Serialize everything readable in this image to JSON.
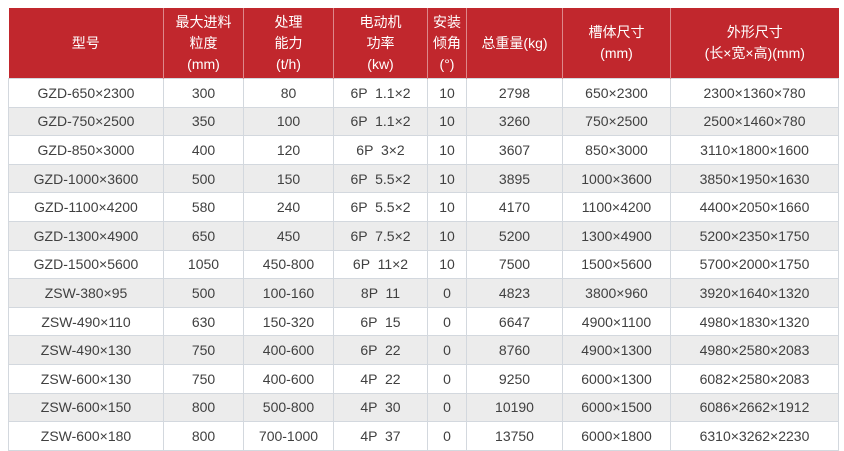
{
  "page": {
    "background": "#ffffff"
  },
  "style": {
    "header_bg": "#c1272d",
    "header_text": "#ffffff",
    "header_divider": "rgba(255,255,255,0.45)",
    "row_bg": "#ffffff",
    "row_alt_bg": "#ececec",
    "border_color": "#d3d8de",
    "text_color": "#404040"
  },
  "chart_data": {
    "type": "table",
    "title": "",
    "columns": [
      {
        "id": "model",
        "lines": [
          "型号"
        ]
      },
      {
        "id": "max-feed-size",
        "lines": [
          "最大进料",
          "粒度",
          "(mm)"
        ]
      },
      {
        "id": "capacity",
        "lines": [
          "处理",
          "能力",
          "(t/h)"
        ]
      },
      {
        "id": "motor-power",
        "lines": [
          "电动机",
          "功率",
          "(kw)"
        ]
      },
      {
        "id": "install-angle",
        "lines": [
          "安装",
          "倾角",
          "(°)"
        ]
      },
      {
        "id": "total-weight",
        "lines": [
          "总重量(kg)"
        ]
      },
      {
        "id": "trough-size",
        "lines": [
          "槽体尺寸",
          "(mm)"
        ]
      },
      {
        "id": "overall-size",
        "lines": [
          "外形尺寸",
          "(长×宽×高)(mm)"
        ]
      }
    ],
    "rows": [
      {
        "cells": [
          "GZD-650×2300",
          "300",
          "80",
          "6P  1.1×2",
          "10",
          "2798",
          "650×2300",
          "2300×1360×780"
        ]
      },
      {
        "cells": [
          "GZD-750×2500",
          "350",
          "100",
          "6P  1.1×2",
          "10",
          "3260",
          "750×2500",
          "2500×1460×780"
        ]
      },
      {
        "cells": [
          "GZD-850×3000",
          "400",
          "120",
          "6P  3×2",
          "10",
          "3607",
          "850×3000",
          "3110×1800×1600"
        ]
      },
      {
        "cells": [
          "GZD-1000×3600",
          "500",
          "150",
          "6P  5.5×2",
          "10",
          "3895",
          "1000×3600",
          "3850×1950×1630"
        ]
      },
      {
        "cells": [
          "GZD-1100×4200",
          "580",
          "240",
          "6P  5.5×2",
          "10",
          "4170",
          "1100×4200",
          "4400×2050×1660"
        ]
      },
      {
        "cells": [
          "GZD-1300×4900",
          "650",
          "450",
          "6P  7.5×2",
          "10",
          "5200",
          "1300×4900",
          "5200×2350×1750"
        ]
      },
      {
        "cells": [
          "GZD-1500×5600",
          "1050",
          "450-800",
          "6P  11×2",
          "10",
          "7500",
          "1500×5600",
          "5700×2000×1750"
        ]
      },
      {
        "cells": [
          "ZSW-380×95",
          "500",
          "100-160",
          "8P  11",
          "0",
          "4823",
          "3800×960",
          "3920×1640×1320"
        ]
      },
      {
        "cells": [
          "ZSW-490×110",
          "630",
          "150-320",
          "6P  15",
          "0",
          "6647",
          "4900×1100",
          "4980×1830×1320"
        ]
      },
      {
        "cells": [
          "ZSW-490×130",
          "750",
          "400-600",
          "6P  22",
          "0",
          "8760",
          "4900×1300",
          "4980×2580×2083"
        ]
      },
      {
        "cells": [
          "ZSW-600×130",
          "750",
          "400-600",
          "4P  22",
          "0",
          "9250",
          "6000×1300",
          "6082×2580×2083"
        ]
      },
      {
        "cells": [
          "ZSW-600×150",
          "800",
          "500-800",
          "4P  30",
          "0",
          "10190",
          "6000×1500",
          "6086×2662×1912"
        ]
      },
      {
        "cells": [
          "ZSW-600×180",
          "800",
          "700-1000",
          "4P  37",
          "0",
          "13750",
          "6000×1800",
          "6310×3262×2230"
        ]
      }
    ]
  }
}
